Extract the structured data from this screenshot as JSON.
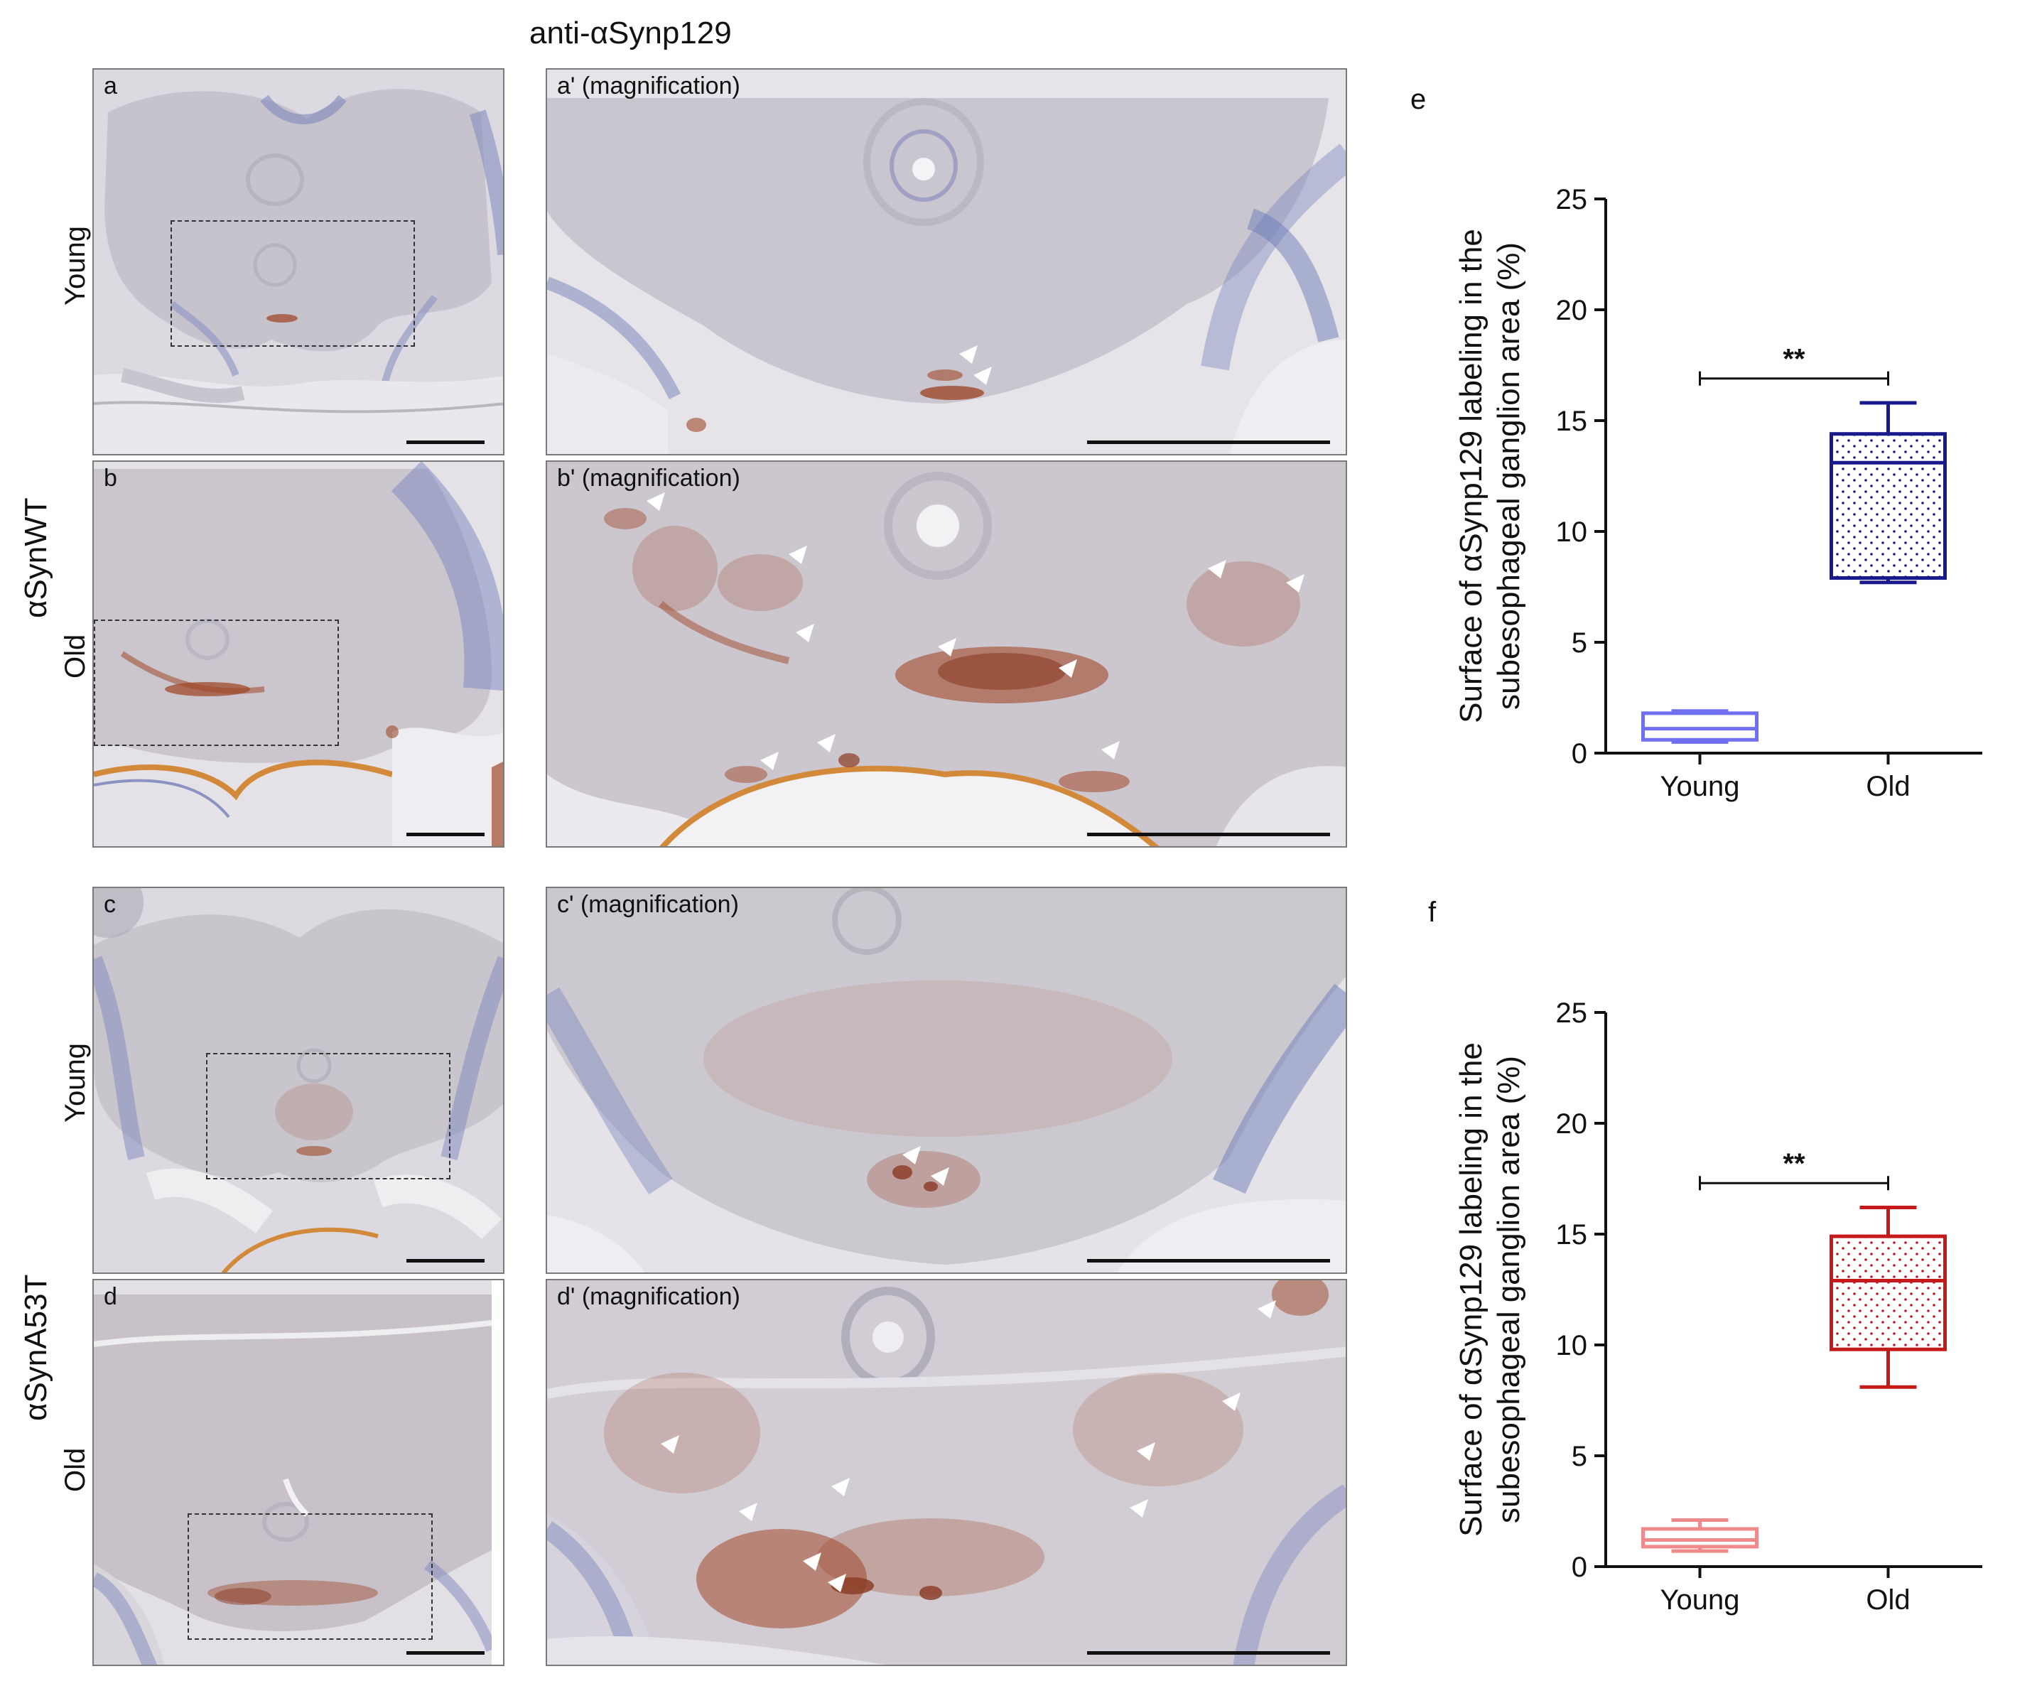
{
  "figure": {
    "title": "anti-αSynp129",
    "rows": [
      {
        "genotype": "αSynWT",
        "ages": [
          "Young",
          "Old"
        ]
      },
      {
        "genotype": "αSynA53T",
        "ages": [
          "Young",
          "Old"
        ]
      }
    ],
    "panels": [
      {
        "letter": "a",
        "mag_label": "a' (magnification)"
      },
      {
        "letter": "b",
        "mag_label": "b' (magnification)"
      },
      {
        "letter": "c",
        "mag_label": "c' (magnification)"
      },
      {
        "letter": "d",
        "mag_label": "d' (magnification)"
      }
    ],
    "colors": {
      "tissue_bg": "#c9c5cf",
      "tissue_light": "#ddd9e0",
      "hematoxylin": "#6b7bb5",
      "stain_brown": "#a0492a",
      "cuticle_orange": "#d28a3a"
    }
  },
  "chart_data": [
    {
      "panel_letter": "e",
      "type": "box",
      "categories": [
        "Young",
        "Old"
      ],
      "ylabel_line1": "Surface of αSynp129 labeling in the",
      "ylabel_line2": "subesophageal ganglion area (%)",
      "ylim": [
        0,
        25
      ],
      "yticks": [
        0,
        5,
        10,
        15,
        20,
        25
      ],
      "boxes": [
        {
          "name": "Young",
          "min": 0.5,
          "q1": 0.6,
          "median": 1.1,
          "q3": 1.8,
          "max": 1.9,
          "color": "#6f6ff0",
          "fill": "none"
        },
        {
          "name": "Old",
          "min": 7.7,
          "q1": 7.9,
          "median": 13.1,
          "q3": 14.4,
          "max": 15.8,
          "color": "#1a1a8c",
          "fill": "dotted"
        }
      ],
      "significance": "**"
    },
    {
      "panel_letter": "f",
      "type": "box",
      "categories": [
        "Young",
        "Old"
      ],
      "ylabel_line1": "Surface of αSynp129 labeling in the",
      "ylabel_line2": "subesophageal ganglion area (%)",
      "ylim": [
        0,
        25
      ],
      "yticks": [
        0,
        5,
        10,
        15,
        20,
        25
      ],
      "boxes": [
        {
          "name": "Young",
          "min": 0.7,
          "q1": 0.9,
          "median": 1.2,
          "q3": 1.7,
          "max": 2.1,
          "color": "#f08a8a",
          "fill": "none"
        },
        {
          "name": "Old",
          "min": 8.1,
          "q1": 9.8,
          "median": 12.9,
          "q3": 14.9,
          "max": 16.2,
          "color": "#c41a1a",
          "fill": "dotted"
        }
      ],
      "significance": "**"
    }
  ]
}
